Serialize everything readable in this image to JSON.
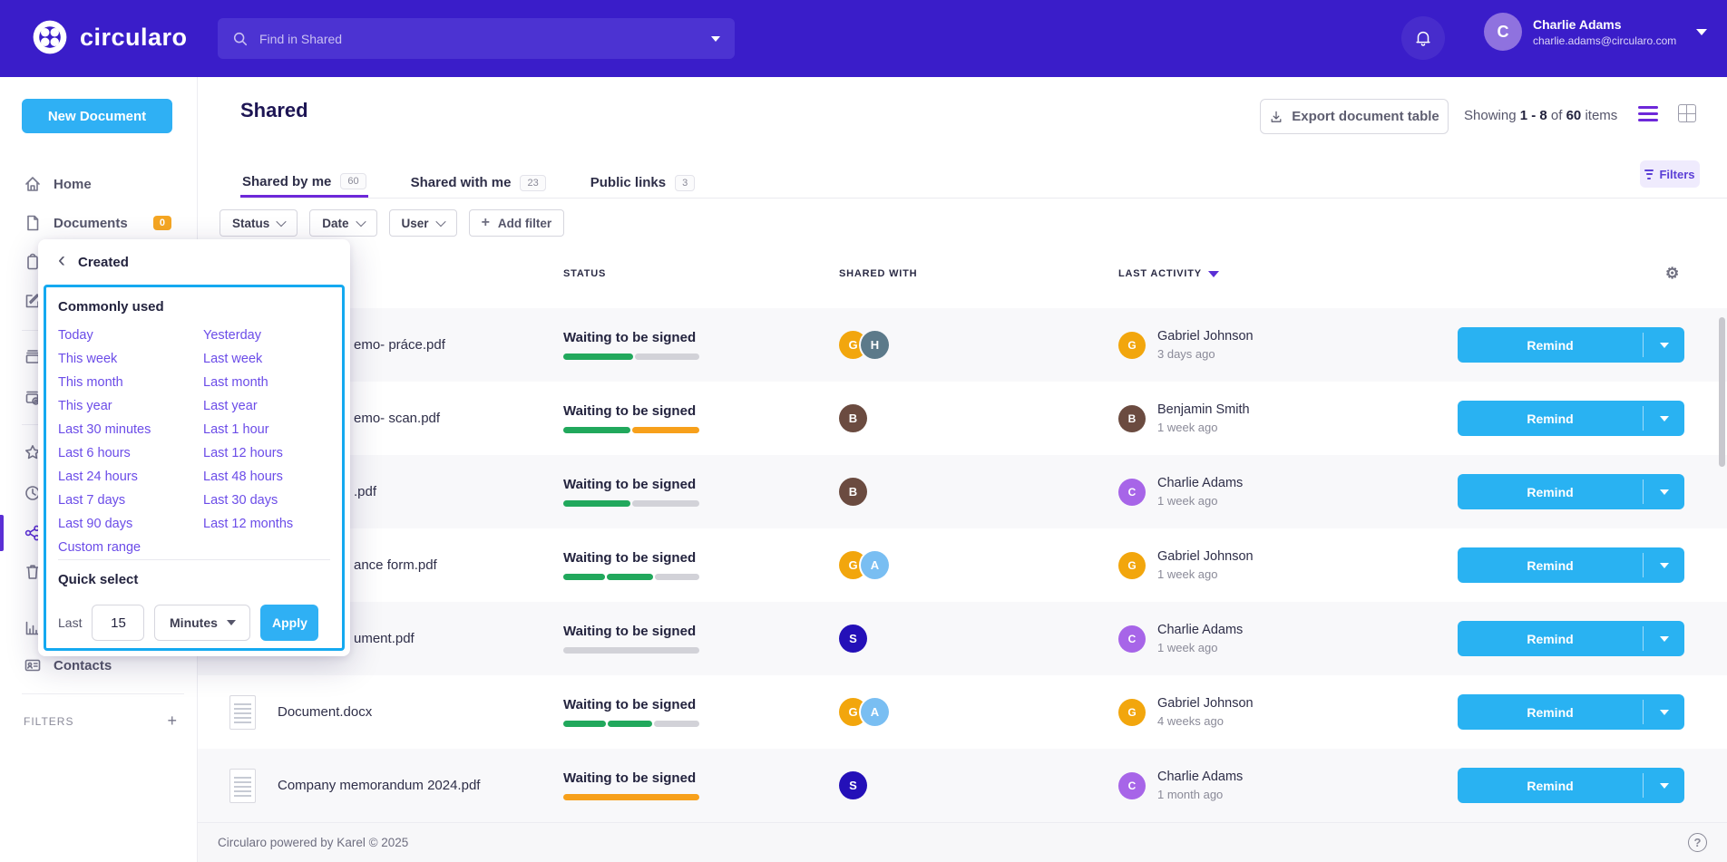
{
  "palette": {
    "header_purple": "#3A1DC9",
    "action_blue": "#29B2F2",
    "link_purple": "#6B4CE8",
    "green": "#21A85C",
    "orange": "#F7A01B",
    "gray": "#D2D2D8",
    "avatar_orange": "#F2A60D",
    "avatar_slate": "#5C7A8A",
    "avatar_brown": "#6B4B40",
    "avatar_lightblue": "#79BEF2",
    "avatar_navy": "#2410B8",
    "avatar_purple": "#A765E8"
  },
  "header": {
    "brand": "circularo",
    "search_placeholder": "Find in Shared",
    "user_name": "Charlie Adams",
    "user_email": "charlie.adams@circularo.com",
    "user_initial": "C"
  },
  "sidebar": {
    "new_document": "New Document",
    "home_label": "Home",
    "documents_label": "Documents",
    "documents_badge": "0",
    "contacts_label": "Contacts",
    "filters_label": "FILTERS",
    "icon_rail": [
      "clipboard",
      "edit-note",
      "archive",
      "mail-at",
      "star",
      "clock",
      "share",
      "trash",
      "bar-chart"
    ]
  },
  "popup": {
    "title": "Created",
    "section_title": "Commonly used",
    "links_left": [
      "Today",
      "This week",
      "This month",
      "This year",
      "Last 30 minutes",
      "Last 6 hours",
      "Last 24 hours",
      "Last 7 days",
      "Last 90 days",
      "Custom range"
    ],
    "links_right": [
      "Yesterday",
      "Last week",
      "Last month",
      "Last year",
      "Last 1 hour",
      "Last 12 hours",
      "Last 48 hours",
      "Last 30 days",
      "Last 12 months"
    ],
    "quick": {
      "heading": "Quick select",
      "last_label": "Last",
      "value": "15",
      "unit": "Minutes",
      "apply": "Apply"
    }
  },
  "main": {
    "title": "Shared",
    "export_button": "Export document table",
    "showing": {
      "word_showing": "Showing",
      "range": "1 - 8",
      "word_of": "of",
      "total": "60",
      "word_items": "items"
    },
    "tabs": [
      {
        "label": "Shared by me",
        "count": "60",
        "active": true
      },
      {
        "label": "Shared with me",
        "count": "23",
        "active": false
      },
      {
        "label": "Public links",
        "count": "3",
        "active": false
      }
    ],
    "filters_button": "Filters",
    "filter_chips": [
      "Status",
      "Date",
      "User"
    ],
    "add_filter_label": "Add filter",
    "columns": {
      "status": "STATUS",
      "shared_with": "SHARED WITH",
      "last_activity": "LAST ACTIVITY"
    },
    "rows": [
      {
        "name": "emo- práce.pdf",
        "covered": true,
        "thumbnail": false,
        "status": "Waiting to be signed",
        "progress": [
          {
            "color": "green",
            "pct": 52
          },
          {
            "color": "gray",
            "pct": 48
          }
        ],
        "shared_with": [
          {
            "initial": "G",
            "color": "avatar_orange"
          },
          {
            "initial": "H",
            "color": "avatar_slate"
          }
        ],
        "activity": {
          "initial": "G",
          "color": "avatar_orange",
          "user": "Gabriel Johnson",
          "time": "3 days ago"
        },
        "action": "Remind"
      },
      {
        "name": "emo- scan.pdf",
        "covered": true,
        "thumbnail": false,
        "status": "Waiting to be signed",
        "progress": [
          {
            "color": "green",
            "pct": 50
          },
          {
            "color": "orange",
            "pct": 50
          }
        ],
        "shared_with": [
          {
            "initial": "B",
            "color": "avatar_brown"
          }
        ],
        "activity": {
          "initial": "B",
          "color": "avatar_brown",
          "user": "Benjamin Smith",
          "time": "1 week ago"
        },
        "action": "Remind"
      },
      {
        "name": ".pdf",
        "covered": true,
        "thumbnail": false,
        "status": "Waiting to be signed",
        "progress": [
          {
            "color": "green",
            "pct": 50
          },
          {
            "color": "gray",
            "pct": 50
          }
        ],
        "shared_with": [
          {
            "initial": "B",
            "color": "avatar_brown"
          }
        ],
        "activity": {
          "initial": "C",
          "color": "avatar_purple",
          "user": "Charlie Adams",
          "time": "1 week ago"
        },
        "action": "Remind"
      },
      {
        "name": "ance form.pdf",
        "covered": true,
        "thumbnail": false,
        "status": "Waiting to be signed",
        "progress": [
          {
            "color": "green",
            "pct": 31
          },
          {
            "color": "green",
            "pct": 34
          },
          {
            "color": "gray",
            "pct": 33
          }
        ],
        "shared_with": [
          {
            "initial": "G",
            "color": "avatar_orange"
          },
          {
            "initial": "A",
            "color": "avatar_lightblue"
          }
        ],
        "activity": {
          "initial": "G",
          "color": "avatar_orange",
          "user": "Gabriel Johnson",
          "time": "1 week ago"
        },
        "action": "Remind"
      },
      {
        "name": "ument.pdf",
        "covered": true,
        "thumbnail": false,
        "status": "Waiting to be signed",
        "progress": [
          {
            "color": "gray",
            "pct": 100
          }
        ],
        "shared_with": [
          {
            "initial": "S",
            "color": "avatar_navy"
          }
        ],
        "activity": {
          "initial": "C",
          "color": "avatar_purple",
          "user": "Charlie Adams",
          "time": "1 week ago"
        },
        "action": "Remind"
      },
      {
        "name": "Document.docx",
        "covered": false,
        "thumbnail": true,
        "status": "Waiting to be signed",
        "progress": [
          {
            "color": "green",
            "pct": 31
          },
          {
            "color": "green",
            "pct": 33
          },
          {
            "color": "gray",
            "pct": 33
          }
        ],
        "shared_with": [
          {
            "initial": "G",
            "color": "avatar_orange"
          },
          {
            "initial": "A",
            "color": "avatar_lightblue"
          }
        ],
        "activity": {
          "initial": "G",
          "color": "avatar_orange",
          "user": "Gabriel Johnson",
          "time": "4 weeks ago"
        },
        "action": "Remind"
      },
      {
        "name": "Company memorandum 2024.pdf",
        "covered": false,
        "thumbnail": true,
        "status": "Waiting to be signed",
        "progress": [
          {
            "color": "orange",
            "pct": 100
          }
        ],
        "shared_with": [
          {
            "initial": "S",
            "color": "avatar_navy"
          }
        ],
        "activity": {
          "initial": "C",
          "color": "avatar_purple",
          "user": "Charlie Adams",
          "time": "1 month ago"
        },
        "action": "Remind"
      }
    ],
    "footer": "Circularo powered by Karel © 2025"
  }
}
